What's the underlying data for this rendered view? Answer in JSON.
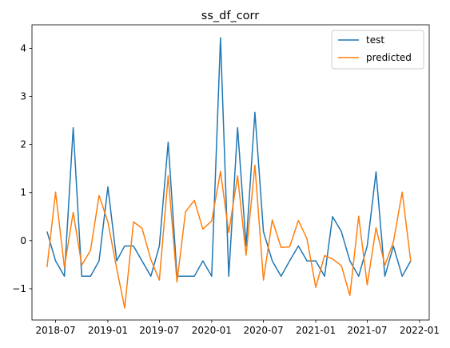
{
  "chart_data": {
    "type": "line",
    "title": "ss_df_corr",
    "xlabel": "",
    "ylabel": "",
    "x": [
      "2018-06",
      "2018-07",
      "2018-08",
      "2018-09",
      "2018-10",
      "2018-11",
      "2018-12",
      "2019-01",
      "2019-02",
      "2019-03",
      "2019-04",
      "2019-05",
      "2019-06",
      "2019-07",
      "2019-08",
      "2019-09",
      "2019-10",
      "2019-11",
      "2019-12",
      "2020-01",
      "2020-02",
      "2020-03",
      "2020-04",
      "2020-05",
      "2020-06",
      "2020-07",
      "2020-08",
      "2020-09",
      "2020-10",
      "2020-11",
      "2020-12",
      "2021-01",
      "2021-02",
      "2021-03",
      "2021-04",
      "2021-05",
      "2021-06",
      "2021-07",
      "2021-08",
      "2021-09",
      "2021-10",
      "2021-11",
      "2021-12"
    ],
    "series": [
      {
        "name": "test",
        "color": "#1f77b4",
        "values": [
          0.19,
          -0.42,
          -0.74,
          2.35,
          -0.74,
          -0.74,
          -0.42,
          1.12,
          -0.42,
          -0.11,
          -0.11,
          -0.42,
          -0.74,
          -0.11,
          2.05,
          -0.74,
          -0.74,
          -0.74,
          -0.42,
          -0.74,
          4.22,
          -0.74,
          2.35,
          -0.11,
          2.67,
          0.19,
          -0.42,
          -0.74,
          -0.42,
          -0.11,
          -0.42,
          -0.42,
          -0.74,
          0.5,
          0.19,
          -0.42,
          -0.74,
          -0.11,
          1.43,
          -0.74,
          -0.11,
          -0.74,
          -0.42
        ]
      },
      {
        "name": "predicted",
        "color": "#ff7f0e",
        "values": [
          -0.55,
          1.01,
          -0.55,
          0.59,
          -0.51,
          -0.2,
          0.94,
          0.39,
          -0.58,
          -1.4,
          0.39,
          0.26,
          -0.39,
          -0.82,
          1.35,
          -0.86,
          0.6,
          0.84,
          0.24,
          0.41,
          1.44,
          0.17,
          1.35,
          -0.3,
          1.57,
          -0.82,
          0.43,
          -0.14,
          -0.13,
          0.42,
          0.04,
          -0.97,
          -0.31,
          -0.38,
          -0.52,
          -1.14,
          0.51,
          -0.92,
          0.27,
          -0.51,
          -0.03,
          1.01,
          -0.43
        ]
      }
    ],
    "ylim": [
      -1.65,
      4.49
    ],
    "xlim": [
      "2018-04-09",
      "2022-02-04"
    ],
    "yticks": [
      -1,
      0,
      1,
      2,
      3,
      4
    ],
    "xticks": [
      "2018-07",
      "2019-01",
      "2019-07",
      "2020-01",
      "2020-07",
      "2021-01",
      "2021-07",
      "2022-01"
    ],
    "legend": {
      "position": "top-right",
      "entries": [
        "test",
        "predicted"
      ]
    },
    "grid": false
  }
}
